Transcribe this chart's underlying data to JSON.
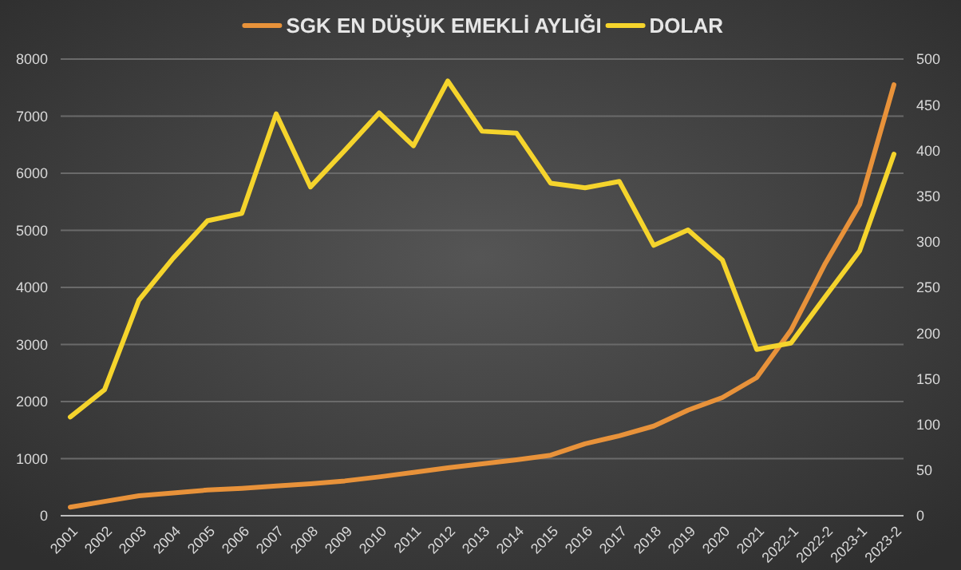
{
  "chart_data": {
    "type": "line",
    "categories": [
      "2001",
      "2002",
      "2003",
      "2004",
      "2005",
      "2006",
      "2007",
      "2008",
      "2009",
      "2010",
      "2011",
      "2012",
      "2013",
      "2014",
      "2015",
      "2016",
      "2017",
      "2018",
      "2019",
      "2020",
      "2021",
      "2022-1",
      "2022-2",
      "2023-1",
      "2023-2"
    ],
    "series": [
      {
        "name": "SGK EN DÜŞÜK EMEKLİ AYLIĞI",
        "color": "#e8923a",
        "values": [
          150,
          250,
          350,
          400,
          450,
          480,
          520,
          560,
          610,
          680,
          760,
          840,
          910,
          980,
          1060,
          1260,
          1400,
          1570,
          1850,
          2070,
          2420,
          3250,
          4420,
          5450,
          7550
        ]
      },
      {
        "name": "DOLAR",
        "color": "#f5d42c",
        "axis": "y2",
        "values": [
          108,
          138,
          236,
          282,
          323,
          331,
          440,
          360,
          400,
          441,
          405,
          476,
          421,
          419,
          364,
          359,
          366,
          296,
          313,
          280,
          182,
          189,
          240,
          290,
          396
        ]
      }
    ],
    "ylim": [
      0,
      8000
    ],
    "yticks": [
      0,
      1000,
      2000,
      3000,
      4000,
      5000,
      6000,
      7000,
      8000
    ],
    "y2lim": [
      0,
      500
    ],
    "y2ticks": [
      0,
      50,
      100,
      150,
      200,
      250,
      300,
      350,
      400,
      450,
      500
    ],
    "grid": "y",
    "legend": "top",
    "marker": "none",
    "line_style": "solid"
  }
}
